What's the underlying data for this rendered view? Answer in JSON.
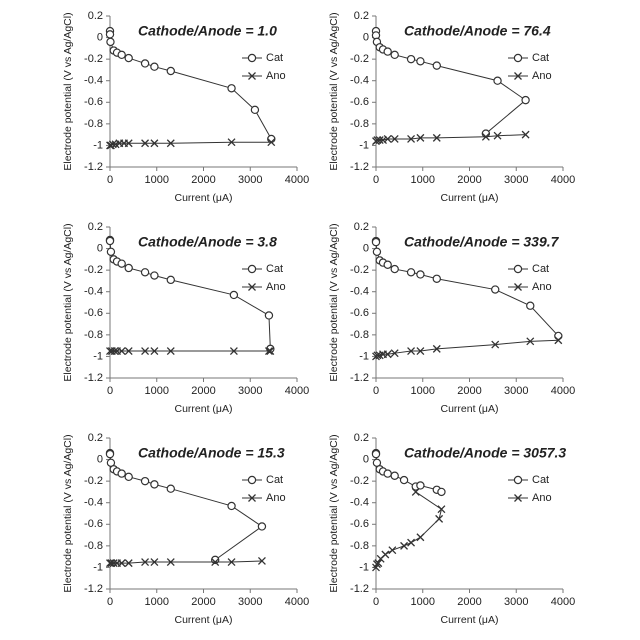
{
  "chart_data": [
    {
      "type": "line",
      "title": "Cathode/Anode = 1.0",
      "xlabel": "Current (μA)",
      "ylabel": "Electrode potential (V vs Ag/AgCl)",
      "xlim": [
        0,
        4000
      ],
      "xticks": [
        0,
        1000,
        2000,
        3000,
        4000
      ],
      "ylim": [
        -1.2,
        0.2
      ],
      "yticks": [
        0.2,
        0,
        -0.2,
        -0.4,
        -0.6,
        -0.8,
        -1,
        -1.2
      ],
      "series": [
        {
          "name": "Cat",
          "color": "#333333",
          "marker": "circle",
          "x": [
            0,
            0,
            10,
            80,
            150,
            250,
            400,
            750,
            950,
            1300,
            2600,
            3100,
            3450
          ],
          "values": [
            0.06,
            0.03,
            -0.04,
            -0.12,
            -0.14,
            -0.16,
            -0.19,
            -0.24,
            -0.27,
            -0.31,
            -0.47,
            -0.67,
            -0.94
          ]
        },
        {
          "name": "Ano",
          "color": "#333333",
          "marker": "cross",
          "x": [
            0,
            20,
            60,
            120,
            200,
            300,
            400,
            750,
            950,
            1300,
            2600,
            3450
          ],
          "values": [
            -1.0,
            -1.0,
            -0.99,
            -0.99,
            -0.98,
            -0.98,
            -0.98,
            -0.98,
            -0.98,
            -0.98,
            -0.97,
            -0.97
          ]
        }
      ]
    },
    {
      "type": "line",
      "title": "Cathode/Anode = 76.4",
      "xlabel": "Current (μA)",
      "ylabel": "Electrode potential (V vs Ag/AgCl)",
      "xlim": [
        0,
        4000
      ],
      "xticks": [
        0,
        1000,
        2000,
        3000,
        4000
      ],
      "ylim": [
        -1.2,
        0.2
      ],
      "yticks": [
        0.2,
        0,
        -0.2,
        -0.4,
        -0.6,
        -0.8,
        -1,
        -1.2
      ],
      "series": [
        {
          "name": "Cat",
          "color": "#333333",
          "marker": "circle",
          "x": [
            0,
            0,
            20,
            80,
            150,
            250,
            400,
            750,
            950,
            1300,
            2600,
            3200,
            2350
          ],
          "values": [
            0.06,
            0.02,
            -0.04,
            -0.09,
            -0.11,
            -0.13,
            -0.16,
            -0.2,
            -0.22,
            -0.26,
            -0.4,
            -0.58,
            -0.89
          ]
        },
        {
          "name": "Ano",
          "color": "#333333",
          "marker": "cross",
          "x": [
            0,
            30,
            80,
            150,
            250,
            400,
            750,
            950,
            1300,
            2350,
            2600,
            3200
          ],
          "values": [
            -0.96,
            -0.95,
            -0.95,
            -0.95,
            -0.94,
            -0.94,
            -0.94,
            -0.93,
            -0.93,
            -0.92,
            -0.91,
            -0.9
          ]
        }
      ]
    },
    {
      "type": "line",
      "title": "Cathode/Anode = 3.8",
      "xlabel": "Current (μA)",
      "ylabel": "Electrode potential (V vs Ag/AgCl)",
      "xlim": [
        0,
        4000
      ],
      "xticks": [
        0,
        1000,
        2000,
        3000,
        4000
      ],
      "ylim": [
        -1.2,
        0.2
      ],
      "yticks": [
        0.2,
        0,
        -0.2,
        -0.4,
        -0.6,
        -0.8,
        -1,
        -1.2
      ],
      "series": [
        {
          "name": "Cat",
          "color": "#333333",
          "marker": "circle",
          "x": [
            0,
            0,
            20,
            80,
            150,
            250,
            400,
            750,
            950,
            1300,
            2650,
            3400,
            3430
          ],
          "values": [
            0.08,
            0.07,
            -0.03,
            -0.1,
            -0.12,
            -0.14,
            -0.18,
            -0.22,
            -0.25,
            -0.29,
            -0.43,
            -0.62,
            -0.93
          ]
        },
        {
          "name": "Ano",
          "color": "#333333",
          "marker": "cross",
          "x": [
            0,
            40,
            100,
            150,
            250,
            400,
            750,
            950,
            1300,
            2650,
            3400,
            3430
          ],
          "values": [
            -0.95,
            -0.95,
            -0.95,
            -0.95,
            -0.95,
            -0.95,
            -0.95,
            -0.95,
            -0.95,
            -0.95,
            -0.95,
            -0.95
          ]
        }
      ]
    },
    {
      "type": "line",
      "title": "Cathode/Anode = 339.7",
      "xlabel": "Current (μA)",
      "ylabel": "Electrode potential (V vs Ag/AgCl)",
      "xlim": [
        0,
        4000
      ],
      "xticks": [
        0,
        1000,
        2000,
        3000,
        4000
      ],
      "ylim": [
        -1.2,
        0.2
      ],
      "yticks": [
        0.2,
        0,
        -0.2,
        -0.4,
        -0.6,
        -0.8,
        -1,
        -1.2
      ],
      "series": [
        {
          "name": "Cat",
          "color": "#333333",
          "marker": "circle",
          "x": [
            0,
            0,
            20,
            80,
            150,
            250,
            400,
            750,
            950,
            1300,
            2550,
            3300,
            3900
          ],
          "values": [
            0.07,
            0.06,
            -0.03,
            -0.11,
            -0.13,
            -0.15,
            -0.19,
            -0.22,
            -0.24,
            -0.28,
            -0.38,
            -0.53,
            -0.81
          ]
        },
        {
          "name": "Ano",
          "color": "#333333",
          "marker": "cross",
          "x": [
            0,
            30,
            80,
            150,
            250,
            400,
            750,
            950,
            1300,
            2550,
            3300,
            3900
          ],
          "values": [
            -1.0,
            -0.99,
            -0.99,
            -0.98,
            -0.98,
            -0.97,
            -0.95,
            -0.95,
            -0.93,
            -0.89,
            -0.86,
            -0.85
          ]
        }
      ]
    },
    {
      "type": "line",
      "title": "Cathode/Anode = 15.3",
      "xlabel": "Current (μA)",
      "ylabel": "Electrode potential (V vs Ag/AgCl)",
      "xlim": [
        0,
        4000
      ],
      "xticks": [
        0,
        1000,
        2000,
        3000,
        4000
      ],
      "ylim": [
        -1.2,
        0.2
      ],
      "yticks": [
        0.2,
        0,
        -0.2,
        -0.4,
        -0.6,
        -0.8,
        -1,
        -1.2
      ],
      "series": [
        {
          "name": "Cat",
          "color": "#333333",
          "marker": "circle",
          "x": [
            0,
            0,
            20,
            80,
            150,
            250,
            400,
            750,
            950,
            1300,
            2600,
            3250,
            2250
          ],
          "values": [
            0.06,
            0.05,
            -0.03,
            -0.09,
            -0.11,
            -0.13,
            -0.16,
            -0.2,
            -0.23,
            -0.27,
            -0.43,
            -0.62,
            -0.93
          ]
        },
        {
          "name": "Ano",
          "color": "#333333",
          "marker": "cross",
          "x": [
            0,
            30,
            80,
            150,
            250,
            400,
            750,
            950,
            1300,
            2250,
            2600,
            3250
          ],
          "values": [
            -0.96,
            -0.96,
            -0.96,
            -0.96,
            -0.96,
            -0.96,
            -0.95,
            -0.95,
            -0.95,
            -0.95,
            -0.95,
            -0.94
          ]
        }
      ]
    },
    {
      "type": "line",
      "title": "Cathode/Anode = 3057.3",
      "xlabel": "Current (μA)",
      "ylabel": "Electrode potential (V vs Ag/AgCl)",
      "xlim": [
        0,
        4000
      ],
      "xticks": [
        0,
        1000,
        2000,
        3000,
        4000
      ],
      "ylim": [
        -1.2,
        0.2
      ],
      "yticks": [
        0.2,
        0,
        -0.2,
        -0.4,
        -0.6,
        -0.8,
        -1,
        -1.2
      ],
      "series": [
        {
          "name": "Cat",
          "color": "#333333",
          "marker": "circle",
          "x": [
            0,
            0,
            20,
            80,
            150,
            250,
            400,
            600,
            850,
            950,
            1300,
            1400
          ],
          "values": [
            0.06,
            0.05,
            -0.03,
            -0.09,
            -0.11,
            -0.13,
            -0.15,
            -0.19,
            -0.25,
            -0.24,
            -0.28,
            -0.3
          ]
        },
        {
          "name": "Ano",
          "color": "#333333",
          "marker": "cross",
          "x": [
            0,
            20,
            50,
            100,
            200,
            350,
            600,
            750,
            950,
            1350,
            1400,
            850
          ],
          "values": [
            -1.0,
            -0.97,
            -0.96,
            -0.92,
            -0.88,
            -0.84,
            -0.8,
            -0.77,
            -0.72,
            -0.55,
            -0.46,
            -0.3
          ]
        }
      ]
    }
  ]
}
